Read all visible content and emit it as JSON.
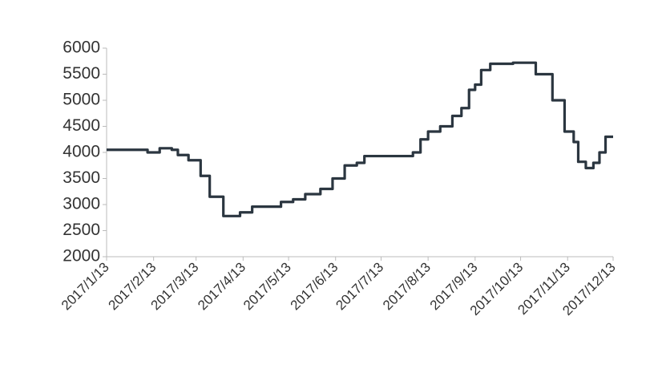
{
  "chart_data": {
    "type": "line",
    "step": true,
    "x": [
      "2017/1/13",
      "2017/2/9",
      "2017/2/17",
      "2017/2/25",
      "2017/3/1",
      "2017/3/8",
      "2017/3/16",
      "2017/3/22",
      "2017/3/31",
      "2017/4/11",
      "2017/4/19",
      "2017/5/8",
      "2017/5/16",
      "2017/5/24",
      "2017/6/3",
      "2017/6/11",
      "2017/6/19",
      "2017/6/27",
      "2017/7/2",
      "2017/8/3",
      "2017/8/8",
      "2017/8/13",
      "2017/8/21",
      "2017/8/29",
      "2017/9/4",
      "2017/9/9",
      "2017/9/13",
      "2017/9/17",
      "2017/9/23",
      "2017/10/8",
      "2017/10/23",
      "2017/11/3",
      "2017/11/11",
      "2017/11/17",
      "2017/11/20",
      "2017/11/25",
      "2017/11/30",
      "2017/12/4",
      "2017/12/8",
      "2017/12/13"
    ],
    "series": [
      {
        "color": "#2b3640",
        "values": [
          4050,
          4000,
          4080,
          4050,
          3950,
          3850,
          3550,
          3150,
          2780,
          2850,
          2960,
          3050,
          3100,
          3200,
          3300,
          3500,
          3750,
          3800,
          3930,
          4000,
          4250,
          4400,
          4500,
          4700,
          4850,
          5200,
          5300,
          5580,
          5700,
          5720,
          5500,
          5000,
          4400,
          4200,
          3820,
          3700,
          3800,
          4000,
          4300,
          4300
        ]
      }
    ],
    "xlim": [
      "2017/1/13",
      "2017/12/13"
    ],
    "xticks": [
      "2017/1/13",
      "2017/2/13",
      "2017/3/13",
      "2017/4/13",
      "2017/5/13",
      "2017/6/13",
      "2017/7/13",
      "2017/8/13",
      "2017/9/13",
      "2017/10/13",
      "2017/11/13",
      "2017/12/13"
    ],
    "ylim": [
      2000,
      6000
    ],
    "yticks": [
      2000,
      2500,
      3000,
      3500,
      4000,
      4500,
      5000,
      5500,
      6000
    ],
    "grid": false
  }
}
